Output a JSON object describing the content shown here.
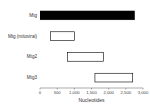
{
  "chart_data": {
    "type": "range_bar",
    "orientation": "horizontal",
    "xlabel": "Nucleotides",
    "categories": [
      "Mtg",
      "Mtg (mitoviral)",
      "Mtg2",
      "Mtg3"
    ],
    "starts": [
      0,
      300,
      800,
      1600
    ],
    "values": [
      2750,
      1000,
      1850,
      2700
    ],
    "colors": [
      "#000000",
      "#ffffff",
      "#ffffff",
      "#ffffff"
    ],
    "xlim": [
      0,
      3000
    ],
    "xticks": [
      0,
      500,
      {
        "value": 1000,
        "label": "1,000"
      },
      {
        "value": 1500,
        "label": "1,500"
      },
      {
        "value": 2000,
        "label": "2,000"
      },
      {
        "value": 2500,
        "label": "2,500"
      },
      {
        "value": 3000,
        "label": "3,000"
      }
    ],
    "grid": false
  }
}
